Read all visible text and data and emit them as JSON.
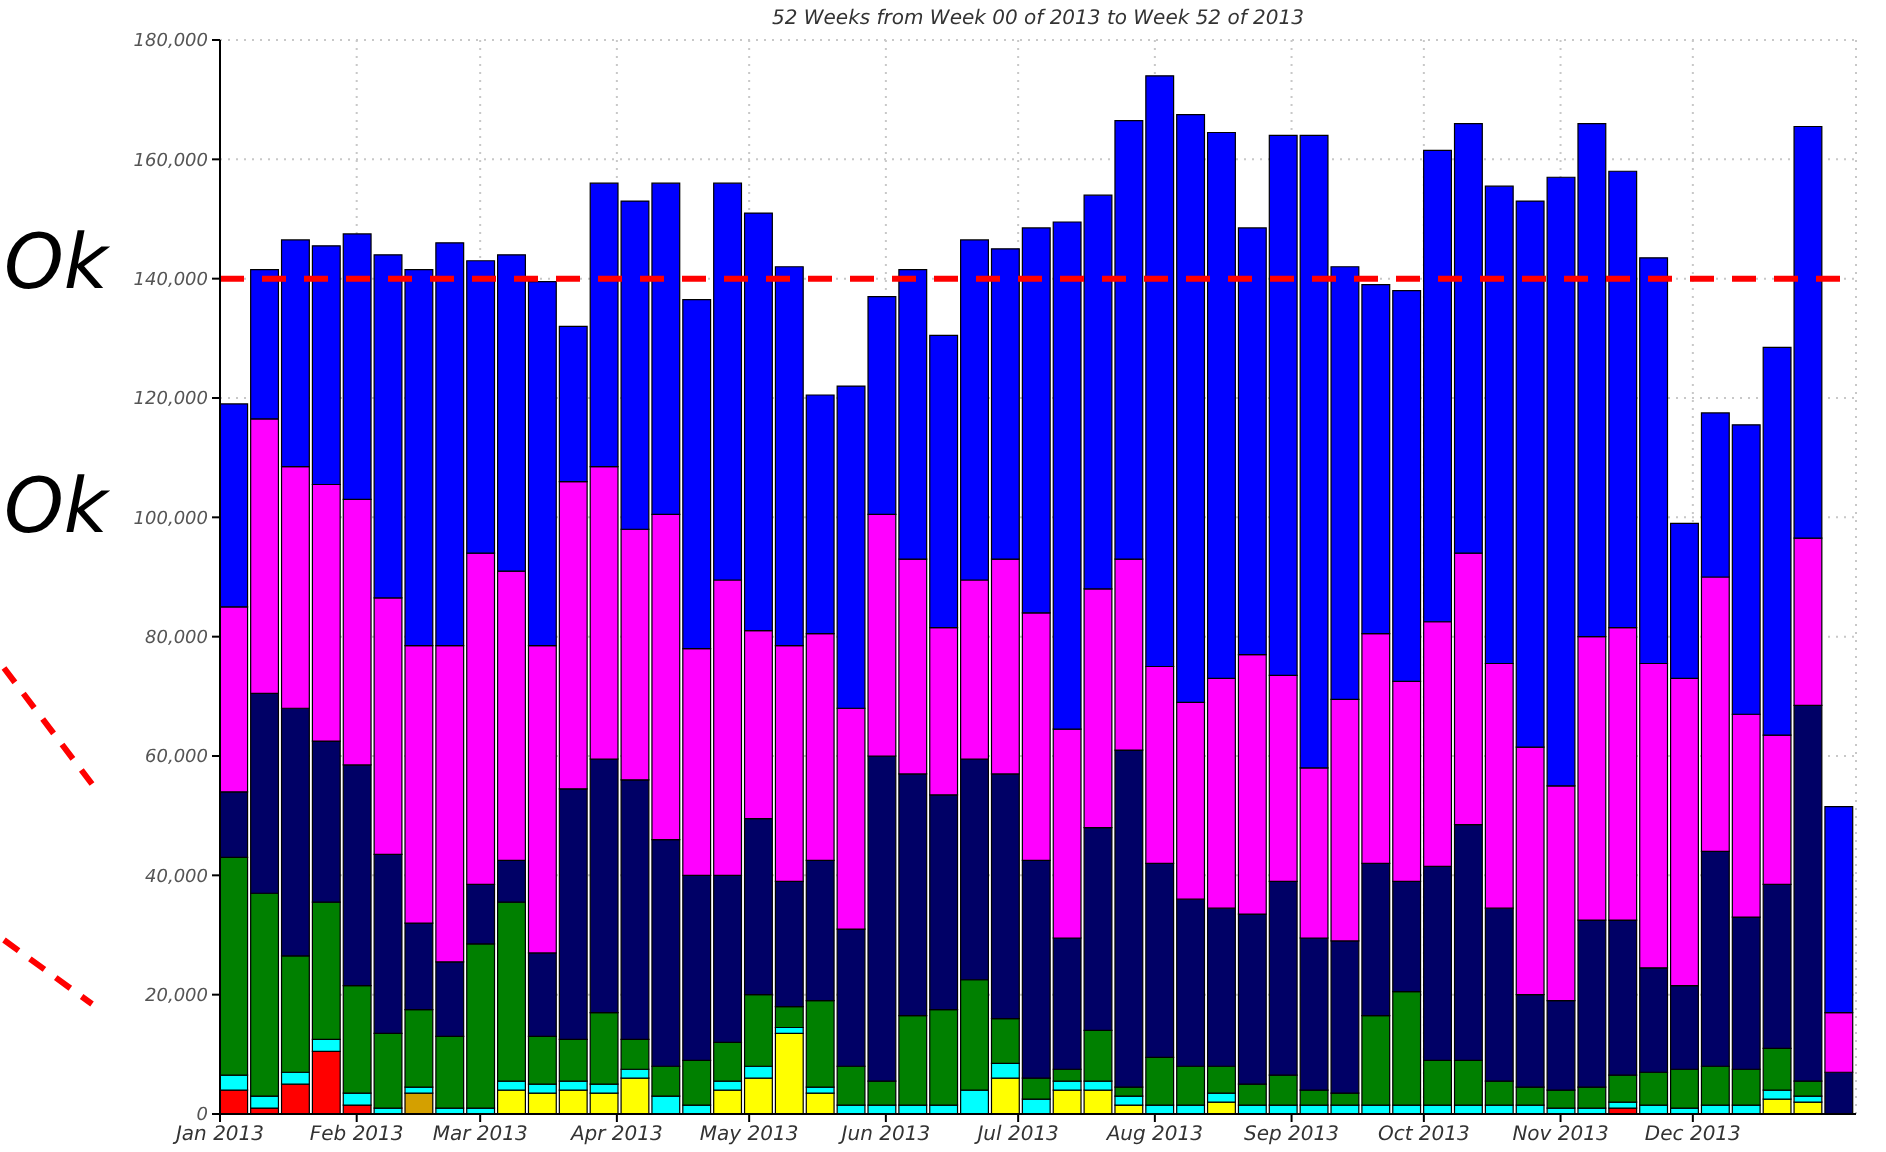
{
  "chart_data": {
    "type": "bar",
    "title": "52 Weeks from Week 00 of 2013 to Week 52 of 2013",
    "stacked": true,
    "grid": true,
    "x": [
      "2013-01-04",
      "2013-01-11",
      "2013-01-18",
      "2013-01-25",
      "2013-02-01",
      "2013-02-08",
      "2013-02-15",
      "2013-02-22",
      "2013-03-01",
      "2013-03-08",
      "2013-03-15",
      "2013-03-22",
      "2013-03-29",
      "2013-04-05",
      "2013-04-12",
      "2013-04-19",
      "2013-04-26",
      "2013-05-03",
      "2013-05-10",
      "2013-05-17",
      "2013-05-24",
      "2013-05-31",
      "2013-06-07",
      "2013-06-14",
      "2013-06-21",
      "2013-06-28",
      "2013-07-05",
      "2013-07-12",
      "2013-07-19",
      "2013-07-26",
      "2013-08-02",
      "2013-08-09",
      "2013-08-16",
      "2013-08-23",
      "2013-08-30",
      "2013-09-06",
      "2013-09-13",
      "2013-09-20",
      "2013-09-27",
      "2013-10-04",
      "2013-10-11",
      "2013-10-18",
      "2013-10-25",
      "2013-11-01",
      "2013-11-08",
      "2013-11-15",
      "2013-11-22",
      "2013-11-29",
      "2013-12-06",
      "2013-12-13",
      "2013-12-20",
      "2013-12-27",
      "2014-01-03"
    ],
    "xlim": [
      "2013-01-01",
      "2014-01-07"
    ],
    "xticks": [
      {
        "value": "2013-01-01",
        "label": "Jan 2013"
      },
      {
        "value": "2013-02-01",
        "label": "Feb 2013"
      },
      {
        "value": "2013-03-01",
        "label": "Mar 2013"
      },
      {
        "value": "2013-04-01",
        "label": "Apr 2013"
      },
      {
        "value": "2013-05-01",
        "label": "May 2013"
      },
      {
        "value": "2013-06-01",
        "label": "Jun 2013"
      },
      {
        "value": "2013-07-01",
        "label": "Jul 2013"
      },
      {
        "value": "2013-08-01",
        "label": "Aug 2013"
      },
      {
        "value": "2013-09-01",
        "label": "Sep 2013"
      },
      {
        "value": "2013-10-01",
        "label": "Oct 2013"
      },
      {
        "value": "2013-11-01",
        "label": "Nov 2013"
      },
      {
        "value": "2013-12-01",
        "label": "Dec 2013"
      }
    ],
    "ylim": [
      0,
      180000
    ],
    "yticks": [
      0,
      {
        "value": 20000,
        "label": "20,000"
      },
      {
        "value": 40000,
        "label": "40,000"
      },
      {
        "value": 60000,
        "label": "60,000"
      },
      {
        "value": 80000,
        "label": "80,000"
      },
      {
        "value": 100000,
        "label": "100,000"
      },
      {
        "value": 120000,
        "label": "120,000"
      },
      {
        "value": 140000,
        "label": "140,000"
      },
      {
        "value": 160000,
        "label": "160,000"
      },
      {
        "value": 180000,
        "label": "180,000"
      }
    ],
    "ref_lines": [
      {
        "axis": "y",
        "value": 140000,
        "color": "#ff0000",
        "line_style": "dashed"
      }
    ],
    "annotations": [
      "Ok",
      "Ok"
    ],
    "series": [
      {
        "color": "#ff0000",
        "values": [
          4000,
          1000,
          5000,
          10500,
          1500,
          0,
          0,
          0,
          0,
          0,
          0,
          0,
          0,
          0,
          0,
          0,
          0,
          0,
          0,
          0,
          0,
          0,
          0,
          0,
          0,
          0,
          0,
          0,
          0,
          0,
          0,
          0,
          0,
          0,
          0,
          0,
          0,
          0,
          0,
          0,
          0,
          0,
          0,
          0,
          0,
          1000,
          0,
          0,
          0,
          0,
          0,
          0,
          0
        ]
      },
      {
        "color": "#d4a000",
        "values": [
          0,
          0,
          0,
          0,
          0,
          0,
          3500,
          0,
          0,
          0,
          0,
          0,
          0,
          0,
          0,
          0,
          0,
          0,
          0,
          0,
          0,
          0,
          0,
          0,
          0,
          0,
          0,
          0,
          0,
          0,
          0,
          0,
          0,
          0,
          0,
          0,
          0,
          0,
          0,
          0,
          0,
          0,
          0,
          0,
          0,
          0,
          0,
          0,
          0,
          0,
          0,
          0,
          0
        ]
      },
      {
        "color": "#ffff00",
        "values": [
          0,
          0,
          0,
          0,
          0,
          0,
          0,
          0,
          0,
          4000,
          3500,
          4000,
          3500,
          6000,
          0,
          0,
          4000,
          6000,
          13500,
          3500,
          0,
          0,
          0,
          0,
          0,
          6000,
          0,
          4000,
          4000,
          1500,
          0,
          0,
          2000,
          0,
          0,
          0,
          0,
          0,
          0,
          0,
          0,
          0,
          0,
          0,
          0,
          0,
          0,
          0,
          0,
          0,
          2500,
          2000,
          0
        ]
      },
      {
        "color": "#00ffff",
        "values": [
          2500,
          2000,
          2000,
          2000,
          2000,
          1000,
          1000,
          1000,
          1000,
          1500,
          1500,
          1500,
          1500,
          1500,
          3000,
          1500,
          1500,
          2000,
          1000,
          1000,
          1500,
          1500,
          1500,
          1500,
          4000,
          2500,
          2500,
          1500,
          1500,
          1500,
          1500,
          1500,
          1500,
          1500,
          1500,
          1500,
          1500,
          1500,
          1500,
          1500,
          1500,
          1500,
          1500,
          1000,
          1000,
          1000,
          1500,
          1000,
          1500,
          1500,
          1500,
          1000,
          0
        ]
      },
      {
        "color": "#008000",
        "values": [
          36500,
          34000,
          19500,
          23000,
          18000,
          12500,
          13000,
          12000,
          27500,
          30000,
          8000,
          7000,
          12000,
          5000,
          5000,
          7500,
          6500,
          12000,
          3500,
          14500,
          6500,
          4000,
          15000,
          16000,
          18500,
          7500,
          3500,
          2000,
          8500,
          1500,
          8000,
          6500,
          4500,
          3500,
          5000,
          2500,
          2000,
          15000,
          19000,
          7500,
          7500,
          4000,
          3000,
          3000,
          3500,
          4500,
          5500,
          6500,
          6500,
          6000,
          7000,
          2500,
          0
        ]
      },
      {
        "color": "#000066",
        "values": [
          11000,
          33500,
          41500,
          27000,
          37000,
          30000,
          14500,
          12500,
          10000,
          7000,
          14000,
          42000,
          42500,
          43500,
          38000,
          31000,
          28000,
          29500,
          21000,
          23500,
          23000,
          54500,
          40500,
          36000,
          37000,
          41000,
          36500,
          22000,
          34000,
          56500,
          32500,
          28000,
          26500,
          28500,
          32500,
          25500,
          25500,
          25500,
          18500,
          32500,
          39500,
          29000,
          15500,
          15000,
          28000,
          26000,
          17500,
          14000,
          36000,
          25500,
          27500,
          63000,
          7000
        ]
      },
      {
        "color": "#ff00ff",
        "values": [
          31000,
          46000,
          40500,
          43000,
          44500,
          43000,
          46500,
          53000,
          55500,
          48500,
          51500,
          51500,
          49000,
          42000,
          54500,
          38000,
          49500,
          31500,
          39500,
          38000,
          37000,
          40500,
          36000,
          28000,
          30000,
          36000,
          41500,
          35000,
          40000,
          32000,
          33000,
          33000,
          38500,
          43500,
          34500,
          28500,
          40500,
          38500,
          33500,
          41000,
          45500,
          41000,
          41500,
          36000,
          47500,
          49000,
          51000,
          51500,
          46000,
          34000,
          25000,
          28000,
          10000
        ]
      },
      {
        "color": "#0000ff",
        "values": [
          34000,
          25000,
          38000,
          40000,
          44500,
          57500,
          63000,
          67500,
          49000,
          53000,
          61000,
          26000,
          47500,
          55000,
          55500,
          58500,
          66500,
          70000,
          63500,
          40000,
          54000,
          36500,
          48500,
          49000,
          57000,
          52000,
          64500,
          85000,
          66000,
          73500,
          99000,
          98500,
          91500,
          71500,
          90500,
          106000,
          72500,
          58500,
          65500,
          79000,
          72000,
          80000,
          91500,
          102000,
          86000,
          76500,
          68000,
          26000,
          27500,
          48500,
          65000,
          69000,
          34500
        ]
      }
    ]
  }
}
